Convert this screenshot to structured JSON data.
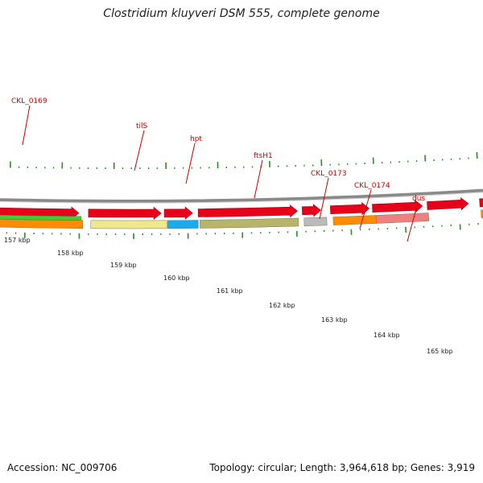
{
  "title": "Clostridium kluyveri DSM 555, complete genome",
  "footer": {
    "accession": "Accession: NC_009706",
    "topology": "Topology: circular; Length: 3,964,618 bp; Genes: 3,919"
  },
  "colors": {
    "backbone": "#8a8a8a",
    "cds": "#e8001a",
    "label": "#cc0000",
    "tick": "#2f8a2f",
    "orange": "#ff8c00",
    "green": "#44cc33",
    "khaki": "#f0e68c",
    "cyan": "#1aaaee",
    "olive": "#b8b46a",
    "gray": "#bbbbbb",
    "salmon": "#f08080"
  },
  "kbp_labels": [
    "157 kbp",
    "158 kbp",
    "159 kbp",
    "160 kbp",
    "161 kbp",
    "162 kbp",
    "163 kbp",
    "164 kbp",
    "165 kbp"
  ],
  "gene_labels": [
    "CKL_0169",
    "tilS",
    "hpt",
    "ftsH1",
    "CKL_0173",
    "CKL_0174",
    "dus"
  ]
}
